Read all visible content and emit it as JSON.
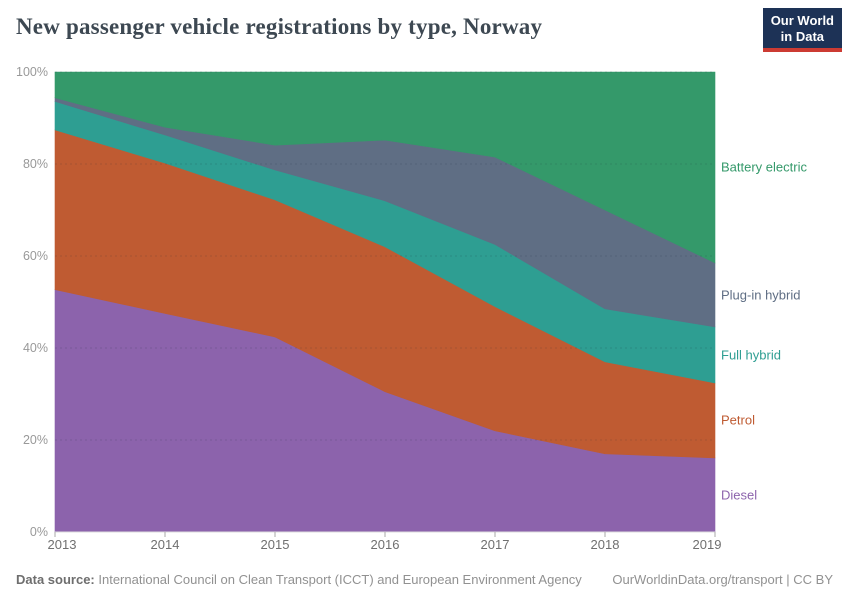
{
  "header": {
    "title": "New passenger vehicle registrations by type, Norway",
    "logo": {
      "line1": "Our World",
      "line2": "in Data",
      "bg_color": "#1d3256",
      "accent_color": "#cc3b33"
    }
  },
  "chart_data": {
    "type": "area",
    "stacked": true,
    "unit": "%",
    "x": [
      2013,
      2014,
      2015,
      2016,
      2017,
      2018,
      2019
    ],
    "x_tick_labels": [
      "2013",
      "2014",
      "2015",
      "2016",
      "2017",
      "2018",
      "2019"
    ],
    "y_ticks": [
      0,
      20,
      40,
      60,
      80,
      100
    ],
    "y_tick_labels": [
      "0%",
      "20%",
      "40%",
      "60%",
      "80%",
      "100%"
    ],
    "ylim": [
      0,
      100
    ],
    "grid": true,
    "legend_position": "right",
    "series": [
      {
        "name": "Diesel",
        "color": "#8c63ac",
        "values": [
          52.7,
          47.5,
          42.4,
          30.5,
          22.0,
          17.0,
          16.1
        ]
      },
      {
        "name": "Petrol",
        "color": "#bf5b32",
        "values": [
          34.7,
          32.7,
          29.8,
          31.5,
          27.0,
          20.0,
          16.3
        ]
      },
      {
        "name": "Full hybrid",
        "color": "#2e9e92",
        "values": [
          6.2,
          6.1,
          6.5,
          10.0,
          13.5,
          11.5,
          12.2
        ]
      },
      {
        "name": "Plug-in hybrid",
        "color": "#5f6e84",
        "values": [
          0.8,
          1.7,
          5.4,
          13.2,
          19.0,
          21.5,
          13.9
        ]
      },
      {
        "name": "Battery electric",
        "color": "#34996a",
        "values": [
          5.6,
          12.0,
          15.9,
          14.8,
          18.5,
          30.0,
          41.5
        ]
      }
    ]
  },
  "footer": {
    "source_label": "Data source:",
    "source_text": " International Council on Clean Transport (ICCT) and European Environment Agency",
    "right_text": "OurWorldinData.org/transport | CC BY"
  }
}
